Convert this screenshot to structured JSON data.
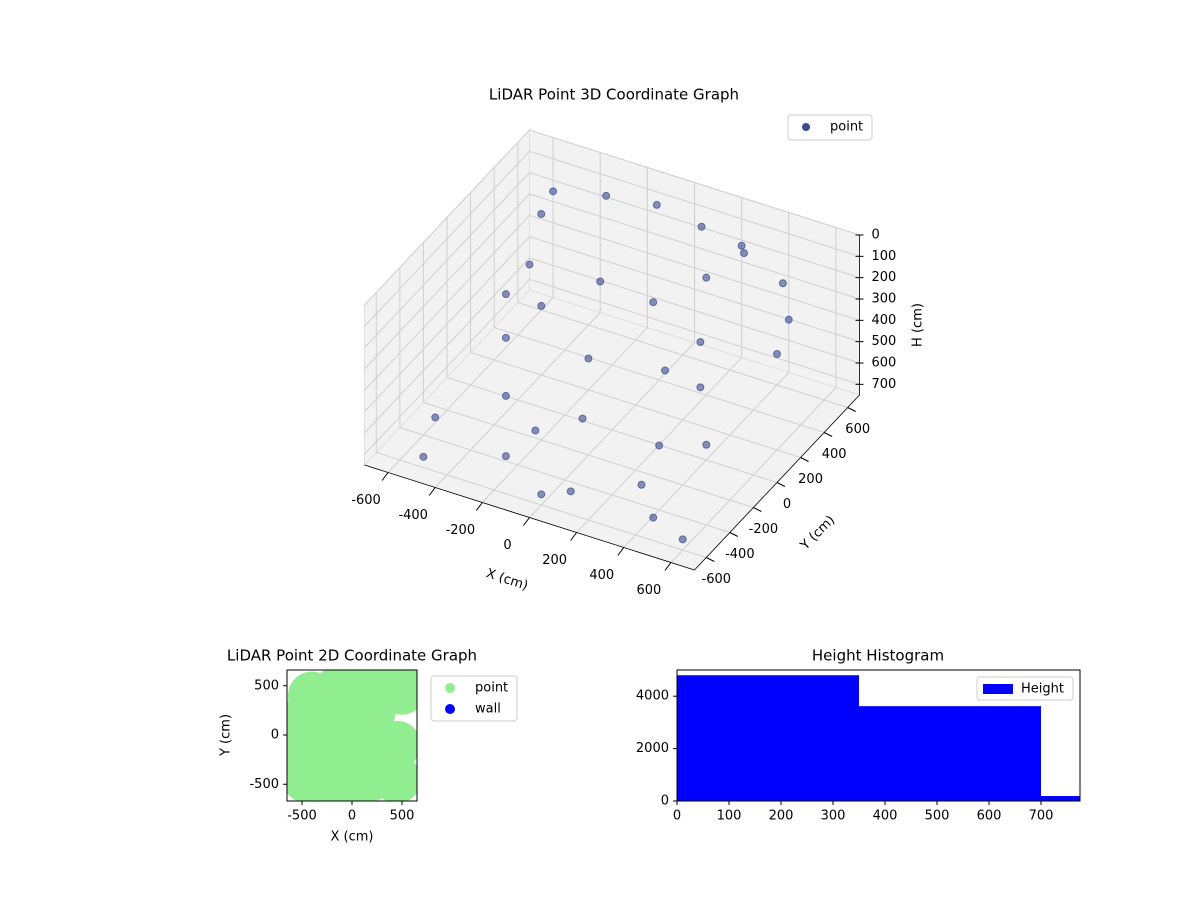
{
  "chart_data": [
    {
      "type": "scatter3d",
      "title": "LiDAR Point 3D Coordinate Graph",
      "x_label": "X (cm)",
      "y_label": "Y (cm)",
      "z_label": "H (cm)",
      "xlim": [
        -700,
        700
      ],
      "ylim": [
        -700,
        700
      ],
      "zlim": [
        750,
        0
      ],
      "xticks": [
        -600,
        -400,
        -200,
        0,
        200,
        400,
        600
      ],
      "yticks": [
        -600,
        -400,
        -200,
        0,
        200,
        400,
        600
      ],
      "zticks": [
        0,
        100,
        200,
        300,
        400,
        500,
        600,
        700
      ],
      "legend": "upper right",
      "series": [
        {
          "name": "point",
          "color": "#3b4a8c",
          "x": [
            -500,
            -300,
            -100,
            100,
            300,
            500,
            -450,
            -200,
            50,
            300,
            -400,
            -100,
            200,
            400,
            -300,
            0,
            300,
            -200,
            100,
            350,
            -600,
            -550,
            600,
            550,
            -500,
            500,
            0,
            200,
            -350,
            450,
            250,
            -150,
            600,
            -600
          ],
          "y": [
            500,
            550,
            580,
            560,
            520,
            450,
            200,
            300,
            250,
            150,
            -100,
            0,
            50,
            -50,
            -300,
            -250,
            -200,
            -500,
            -550,
            -450,
            300,
            -400,
            200,
            -300,
            -600,
            500,
            -600,
            400,
            100,
            -550,
            600,
            -350,
            -600,
            600
          ],
          "z": [
            100,
            80,
            70,
            90,
            120,
            150,
            250,
            300,
            280,
            320,
            400,
            450,
            430,
            380,
            520,
            550,
            600,
            650,
            680,
            620,
            500,
            650,
            300,
            450,
            700,
            350,
            700,
            200,
            350,
            680,
            150,
            600,
            700,
            300
          ]
        }
      ]
    },
    {
      "type": "scatter",
      "title": "LiDAR Point 2D Coordinate Graph",
      "x_label": "X (cm)",
      "y_label": "Y (cm)",
      "xlim": [
        -650,
        650
      ],
      "ylim": [
        -670,
        660
      ],
      "xticks": [
        -500,
        0,
        500
      ],
      "yticks": [
        -500,
        0,
        500
      ],
      "legend": "outside right",
      "series": [
        {
          "name": "point",
          "color": "#90ee90",
          "x": [
            -450,
            -150,
            150,
            450,
            -500,
            -200,
            100,
            450,
            -500,
            -200,
            100,
            200,
            -400,
            -150,
            100,
            300,
            -50,
            500
          ],
          "y": [
            -450,
            -500,
            -450,
            -450,
            -150,
            -150,
            -150,
            -100,
            150,
            150,
            150,
            250,
            400,
            450,
            450,
            450,
            600,
            450
          ]
        },
        {
          "name": "wall",
          "color": "#0000ff",
          "x": [],
          "y": []
        }
      ]
    },
    {
      "type": "histogram",
      "title": "Height Histogram",
      "bins": [
        0,
        350,
        700,
        1050
      ],
      "values": [
        4800,
        3620,
        190
      ],
      "xlim": [
        0,
        775
      ],
      "ylim": [
        0,
        5000
      ],
      "xticks": [
        0,
        100,
        200,
        300,
        400,
        500,
        600,
        700
      ],
      "yticks": [
        0,
        2000,
        4000
      ],
      "legend": "upper right",
      "series_name": "Height",
      "color": "#0000ff"
    }
  ]
}
